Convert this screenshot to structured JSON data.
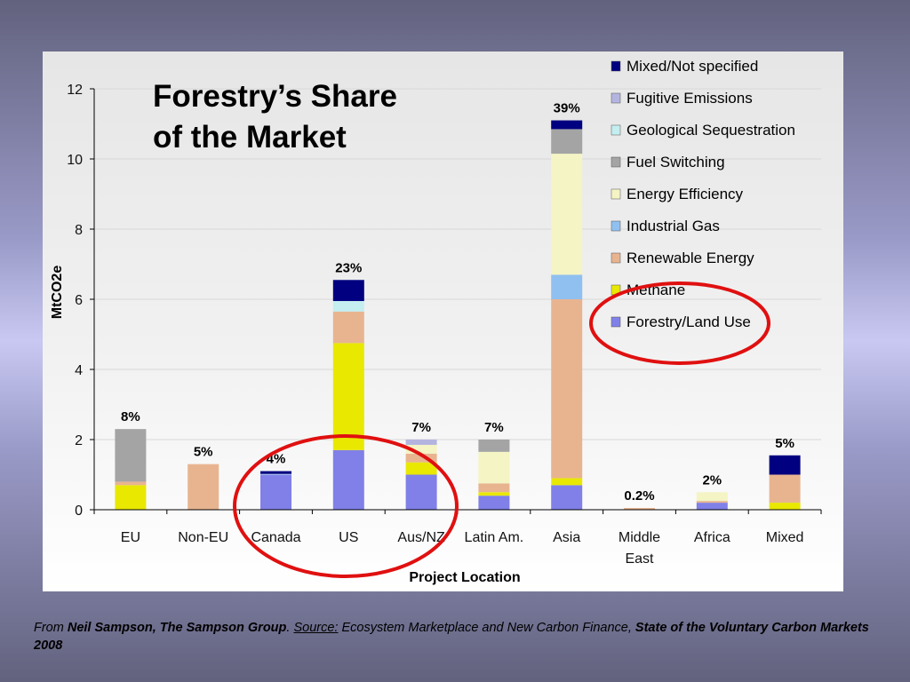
{
  "chart_data": {
    "type": "bar",
    "stacked": true,
    "title": [
      "Forestry’s Share",
      "of the Market"
    ],
    "xlabel": "Project Location",
    "ylabel": "MtCO2e",
    "ylim": [
      0,
      12
    ],
    "yticks": [
      0,
      2,
      4,
      6,
      8,
      10,
      12
    ],
    "categories": [
      "EU",
      "Non-EU",
      "Canada",
      "US",
      "Aus/NZ",
      "Latin Am.",
      "Asia",
      "Middle East",
      "Africa",
      "Mixed"
    ],
    "category_labels": [
      [
        "EU"
      ],
      [
        "Non-EU"
      ],
      [
        "Canada"
      ],
      [
        "US"
      ],
      [
        "Aus/NZ"
      ],
      [
        "Latin Am."
      ],
      [
        "Asia"
      ],
      [
        "Middle",
        "East"
      ],
      [
        "Africa"
      ],
      [
        "Mixed"
      ]
    ],
    "forestry_share_labels": [
      "8%",
      "5%",
      "4%",
      "23%",
      "7%",
      "7%",
      "39%",
      "0.2%",
      "2%",
      "5%"
    ],
    "legend_position": "top-right",
    "series": [
      {
        "name": "Forestry/Land Use",
        "color": "#8080e8",
        "values": [
          0,
          0,
          1.0,
          1.7,
          1.0,
          0.4,
          0.7,
          0,
          0.2,
          0
        ]
      },
      {
        "name": "Methane",
        "color": "#e8e800",
        "values": [
          0.7,
          0,
          0,
          3.05,
          0.35,
          0.1,
          0.2,
          0,
          0,
          0.2
        ]
      },
      {
        "name": "Renewable Energy",
        "color": "#e8b490",
        "values": [
          0.1,
          1.3,
          0,
          0.9,
          0.25,
          0.25,
          5.1,
          0.05,
          0.05,
          0.8
        ]
      },
      {
        "name": "Industrial Gas",
        "color": "#90c0f0",
        "values": [
          0,
          0,
          0,
          0,
          0,
          0,
          0.7,
          0,
          0,
          0
        ]
      },
      {
        "name": "Energy Efficiency",
        "color": "#f4f4c4",
        "values": [
          0,
          0,
          0,
          0,
          0.25,
          0.9,
          3.45,
          0,
          0.25,
          0
        ]
      },
      {
        "name": "Fuel Switching",
        "color": "#a4a4a4",
        "values": [
          1.5,
          0,
          0,
          0,
          0,
          0.35,
          0.7,
          0,
          0,
          0
        ]
      },
      {
        "name": "Geological Sequestration",
        "color": "#c4eef0",
        "values": [
          0,
          0,
          0.02,
          0.3,
          0,
          0,
          0,
          0,
          0,
          0
        ]
      },
      {
        "name": "Fugitive Emissions",
        "color": "#b4b4e0",
        "values": [
          0,
          0,
          0,
          0,
          0.15,
          0,
          0,
          0,
          0,
          0
        ]
      },
      {
        "name": "Mixed/Not specified",
        "color": "#000080",
        "values": [
          0,
          0,
          0.08,
          0.6,
          0,
          0,
          0.25,
          0,
          0,
          0.55
        ]
      }
    ]
  },
  "annotations": {
    "highlight_color": "#e01010"
  },
  "footer": {
    "from_prefix": "From ",
    "author": "Neil Sampson, The Sampson Group",
    "sep": ".  ",
    "source_label": "Source:",
    "source_text": "  Ecosystem Marketplace and New Carbon Finance, ",
    "report_title": "State of the Voluntary Carbon Markets 2008"
  }
}
